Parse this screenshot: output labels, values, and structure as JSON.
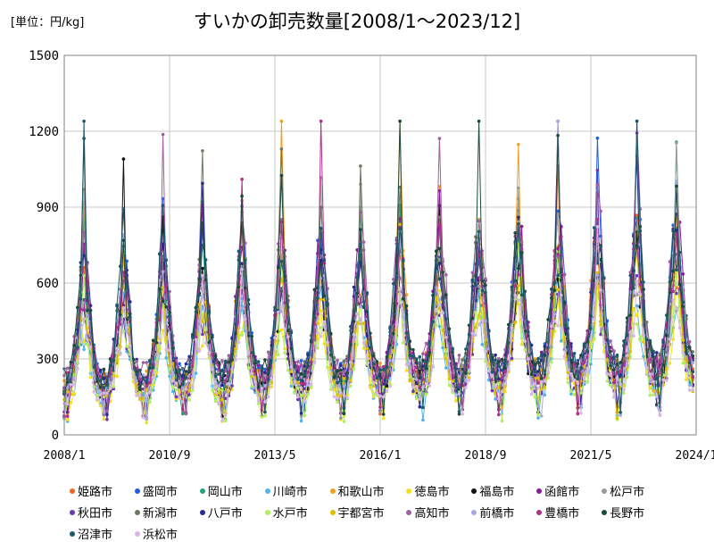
{
  "chart_data": {
    "type": "line",
    "title": "すいかの卸売数量[2008/1～2023/12]",
    "unit_label": "[単位：円/kg]",
    "x_tick_labels": [
      "2008/1",
      "2010/9",
      "2013/5",
      "2016/1",
      "2018/9",
      "2021/5",
      "2024/1"
    ],
    "y_tick_labels": [
      "0",
      "300",
      "600",
      "900",
      "1200",
      "1500"
    ],
    "ylim": [
      0,
      1500
    ],
    "x_start": "2008-01",
    "x_end": "2024-01",
    "grid": true,
    "legend_position": "bottom",
    "series": [
      {
        "name": "姫路市",
        "color": "#f26522"
      },
      {
        "name": "盛岡市",
        "color": "#1f5fe0"
      },
      {
        "name": "岡山市",
        "color": "#1fa37a"
      },
      {
        "name": "川崎市",
        "color": "#4fb3f0"
      },
      {
        "name": "和歌山市",
        "color": "#f0a020"
      },
      {
        "name": "徳島市",
        "color": "#f2e01a"
      },
      {
        "name": "福島市",
        "color": "#111111"
      },
      {
        "name": "函館市",
        "color": "#8b1a9a"
      },
      {
        "name": "松戸市",
        "color": "#9a9a9a"
      },
      {
        "name": "秋田市",
        "color": "#6a3ab0"
      },
      {
        "name": "新潟市",
        "color": "#6a7a60"
      },
      {
        "name": "八戸市",
        "color": "#2a2a90"
      },
      {
        "name": "水戸市",
        "color": "#b0f060"
      },
      {
        "name": "宇都宮市",
        "color": "#e0c000"
      },
      {
        "name": "高知市",
        "color": "#a060a0"
      },
      {
        "name": "前橋市",
        "color": "#a8a8e0"
      },
      {
        "name": "豊橋市",
        "color": "#b03090"
      },
      {
        "name": "長野市",
        "color": "#1a4a3a"
      },
      {
        "name": "沼津市",
        "color": "#1a5a6a"
      },
      {
        "name": "浜松市",
        "color": "#d8b8e0"
      }
    ]
  }
}
